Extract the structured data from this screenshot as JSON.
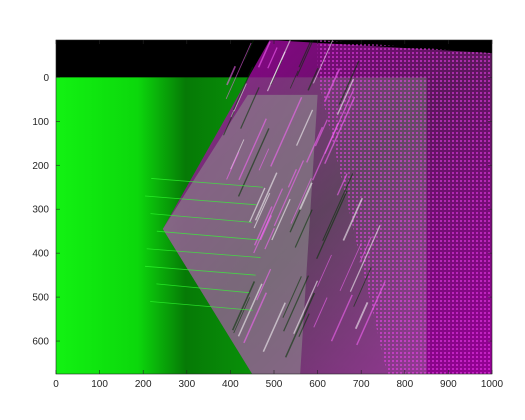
{
  "chart_data": {
    "type": "image",
    "title": "",
    "xlabel": "",
    "ylabel": "",
    "xlim": [
      0,
      1000
    ],
    "ylim": [
      -85,
      675
    ],
    "y_direction": "reverse",
    "x_ticks": [
      0,
      100,
      200,
      300,
      400,
      500,
      600,
      700,
      800,
      900,
      1000
    ],
    "y_ticks": [
      0,
      100,
      200,
      300,
      400,
      500,
      600
    ],
    "x_tick_labels": [
      "0",
      "100",
      "200",
      "300",
      "400",
      "500",
      "600",
      "700",
      "800",
      "900",
      "1000"
    ],
    "y_tick_labels": [
      "0",
      "100",
      "200",
      "300",
      "400",
      "500",
      "600"
    ],
    "image_regions": [
      {
        "name": "black-background-top",
        "x": [
          0,
          1000
        ],
        "y": [
          -85,
          0
        ],
        "color": "#000000"
      },
      {
        "name": "black-background-right",
        "x": [
          850,
          1000
        ],
        "y": [
          0,
          675
        ],
        "color": "#000000"
      },
      {
        "name": "green-reference-image",
        "x": [
          0,
          850
        ],
        "y": [
          0,
          675
        ],
        "color": "#00e000"
      },
      {
        "name": "magenta-warped-image",
        "color": "#ff33ff",
        "polygon": [
          [
            490,
            -85
          ],
          [
            1000,
            -55
          ],
          [
            1000,
            675
          ],
          [
            450,
            675
          ],
          [
            245,
            345
          ]
        ]
      }
    ],
    "colors": {
      "green": "#00dd00",
      "magenta": "#ff44ff",
      "gray": "#9a9a9a",
      "background": "#000000"
    },
    "grid": false
  }
}
